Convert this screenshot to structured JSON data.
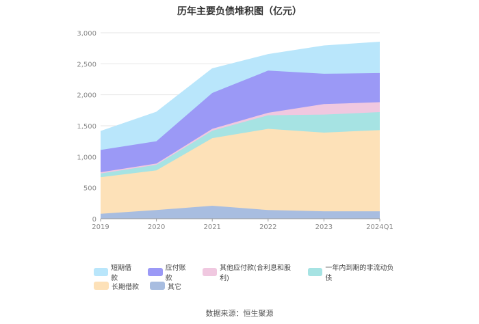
{
  "title": "历年主要负债堆积图（亿元）",
  "source": "数据来源：恒生聚源",
  "colors": {
    "short_borrowing": "#b9e6fb",
    "accounts_payable": "#9b99f6",
    "other_payables": "#f0c8e0",
    "noncurrent_due": "#a6e3e3",
    "long_borrowing": "#fde1b8",
    "other": "#a8bde0"
  },
  "legend": [
    {
      "key": "short_borrowing",
      "label": "短期借款"
    },
    {
      "key": "accounts_payable",
      "label": "应付账款"
    },
    {
      "key": "other_payables",
      "label": "其他应付款(合利息和股利)"
    },
    {
      "key": "noncurrent_due",
      "label": "一年内到期的非流动负债"
    },
    {
      "key": "long_borrowing",
      "label": "长期借款"
    },
    {
      "key": "other",
      "label": "其它"
    }
  ],
  "chart_data": {
    "type": "area",
    "stacked": true,
    "title": "历年主要负债堆积图（亿元）",
    "categories": [
      "2019",
      "2020",
      "2021",
      "2022",
      "2023",
      "2024Q1"
    ],
    "ylim": [
      0,
      3000
    ],
    "yticks": [
      "0",
      "500",
      "1,000",
      "1,500",
      "2,000",
      "2,500",
      "3,000"
    ],
    "series": [
      {
        "key": "other",
        "name": "其它",
        "values": [
          80,
          140,
          210,
          140,
          120,
          120
        ]
      },
      {
        "key": "long_borrowing",
        "name": "长期借款",
        "values": [
          590,
          640,
          1090,
          1310,
          1270,
          1310
        ]
      },
      {
        "key": "noncurrent_due",
        "name": "一年内到期的非流动负债",
        "values": [
          60,
          90,
          120,
          220,
          290,
          290
        ]
      },
      {
        "key": "other_payables",
        "name": "其他应付款(合利息和股利)",
        "values": [
          20,
          20,
          30,
          40,
          170,
          160
        ]
      },
      {
        "key": "accounts_payable",
        "name": "应付账款",
        "values": [
          360,
          360,
          580,
          680,
          490,
          470
        ]
      },
      {
        "key": "short_borrowing",
        "name": "短期借款",
        "values": [
          300,
          470,
          390,
          260,
          450,
          500
        ]
      }
    ]
  }
}
